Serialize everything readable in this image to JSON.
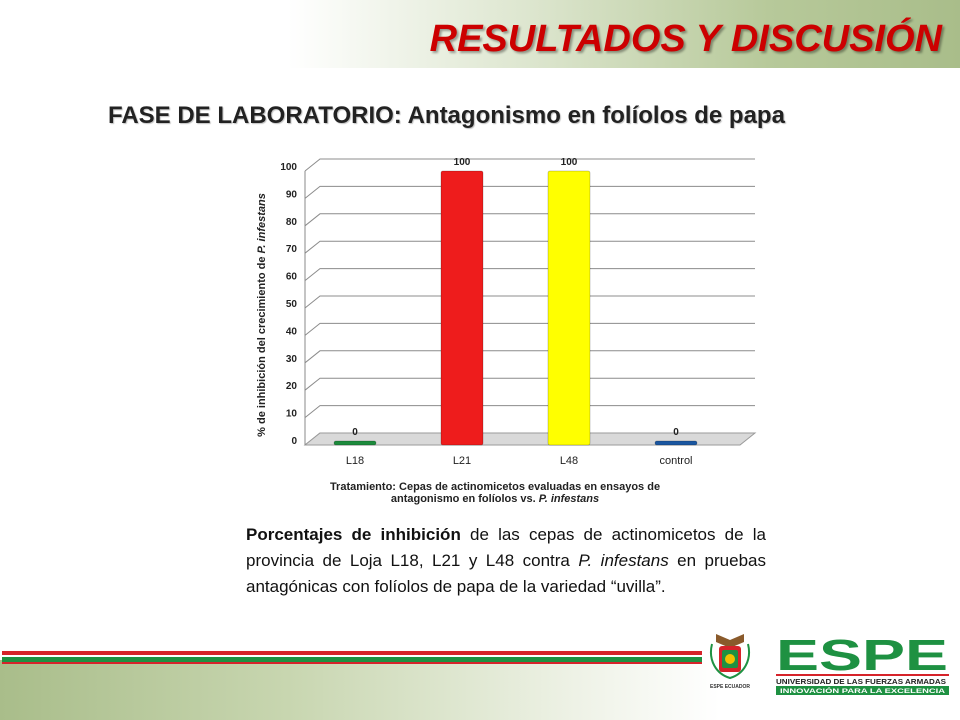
{
  "slide": {
    "title": "RESULTADOS Y DISCUSIÓN",
    "subtitle_bold": "FASE DE LABORATORIO:",
    "subtitle_rest": " Antagonismo en folíolos de papa",
    "caption": {
      "bold_lead": "Porcentajes de inhibición",
      "part1": " de las cepas de actinomicetos de la provincia de Loja L18, L21 y L48 contra ",
      "italic": "P. infestans",
      "part2": " en pruebas antagónicas con folíolos de papa de la variedad “uvilla”."
    },
    "logo": {
      "name": "ESPE",
      "line1": "UNIVERSIDAD DE LAS FUERZAS ARMADAS",
      "line2": "INNOVACIÓN PARA LA EXCELENCIA",
      "crest_text": "ESPE ECUADOR"
    },
    "colors": {
      "title": "#cc0000",
      "logo_green": "#1e9142",
      "logo_red": "#d6232a"
    }
  },
  "chart_data": {
    "type": "bar",
    "categories": [
      "L18",
      "L21",
      "L48",
      "control"
    ],
    "values": [
      0,
      100,
      100,
      0
    ],
    "data_labels": [
      "0",
      "100",
      "100",
      "0"
    ],
    "colors": [
      "#1c8a3c",
      "#ee1c1c",
      "#ffff00",
      "#1a56a0"
    ],
    "ylim": [
      0,
      100
    ],
    "yticks": [
      0,
      10,
      20,
      30,
      40,
      50,
      60,
      70,
      80,
      90,
      100
    ],
    "grid": true,
    "ylabel_prefix": "% de inhibición del crecimiento de ",
    "ylabel_italic": "P. infestans",
    "xlabel_line1": "Tratamiento: Cepas de actinomicetos evaluadas en ensayos de",
    "xlabel_line2_prefix": "antagonismo en folíolos vs. ",
    "xlabel_line2_italic": "P. infestans"
  }
}
